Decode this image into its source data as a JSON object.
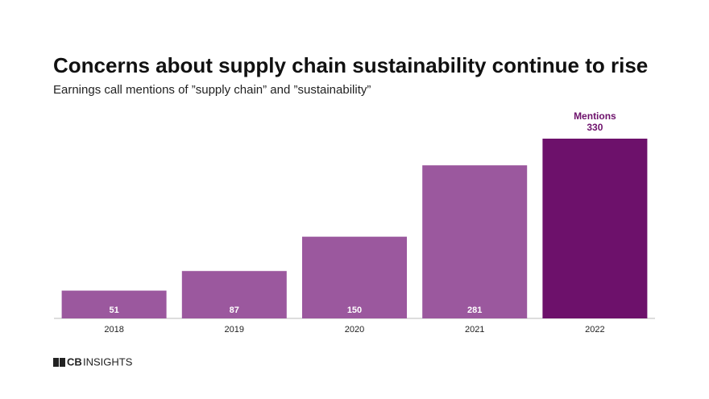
{
  "chart_data": {
    "type": "bar",
    "title": "Concerns about supply chain sustainability continue to rise",
    "subtitle": "Earnings call mentions of ”supply chain” and ”sustainability”",
    "categories": [
      "2018",
      "2019",
      "2020",
      "2021",
      "2022"
    ],
    "values": [
      51,
      87,
      150,
      281,
      330
    ],
    "colors": [
      "#9b589e",
      "#9b589e",
      "#9b589e",
      "#9b589e",
      "#6d116b"
    ],
    "annotation": "Mentions",
    "logo_bold": "CB",
    "logo_text": "INSIGHTS"
  }
}
